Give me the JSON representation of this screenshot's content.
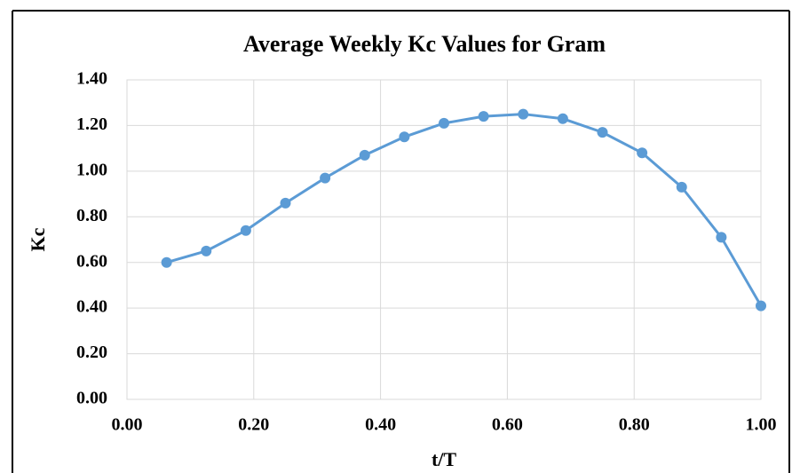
{
  "chart_data": {
    "type": "line",
    "title": "Average Weekly Kc Values for Gram",
    "xlabel": "t/T",
    "ylabel": "Kc",
    "x": [
      0.0625,
      0.125,
      0.1875,
      0.25,
      0.3125,
      0.375,
      0.4375,
      0.5,
      0.5625,
      0.625,
      0.6875,
      0.75,
      0.8125,
      0.875,
      0.9375,
      1.0
    ],
    "series": [
      {
        "name": "Kc",
        "color": "#5b9bd5",
        "values": [
          0.6,
          0.65,
          0.74,
          0.86,
          0.97,
          1.07,
          1.15,
          1.21,
          1.24,
          1.25,
          1.23,
          1.17,
          1.08,
          0.93,
          0.71,
          0.41
        ]
      }
    ],
    "xlim": [
      0,
      1
    ],
    "ylim": [
      0,
      1.4
    ],
    "xticks": [
      {
        "value": 0,
        "label": "0.00"
      },
      {
        "value": 0.2,
        "label": "0.20"
      },
      {
        "value": 0.4,
        "label": "0.40"
      },
      {
        "value": 0.6,
        "label": "0.60"
      },
      {
        "value": 0.8,
        "label": "0.80"
      },
      {
        "value": 1,
        "label": "1.00"
      }
    ],
    "yticks": [
      {
        "value": 0,
        "label": "0.00"
      },
      {
        "value": 0.2,
        "label": "0.20"
      },
      {
        "value": 0.4,
        "label": "0.40"
      },
      {
        "value": 0.6,
        "label": "0.60"
      },
      {
        "value": 0.8,
        "label": "0.80"
      },
      {
        "value": 1,
        "label": "1.00"
      },
      {
        "value": 1.2,
        "label": "1.20"
      },
      {
        "value": 1.4,
        "label": "1.40"
      }
    ],
    "grid": true
  }
}
